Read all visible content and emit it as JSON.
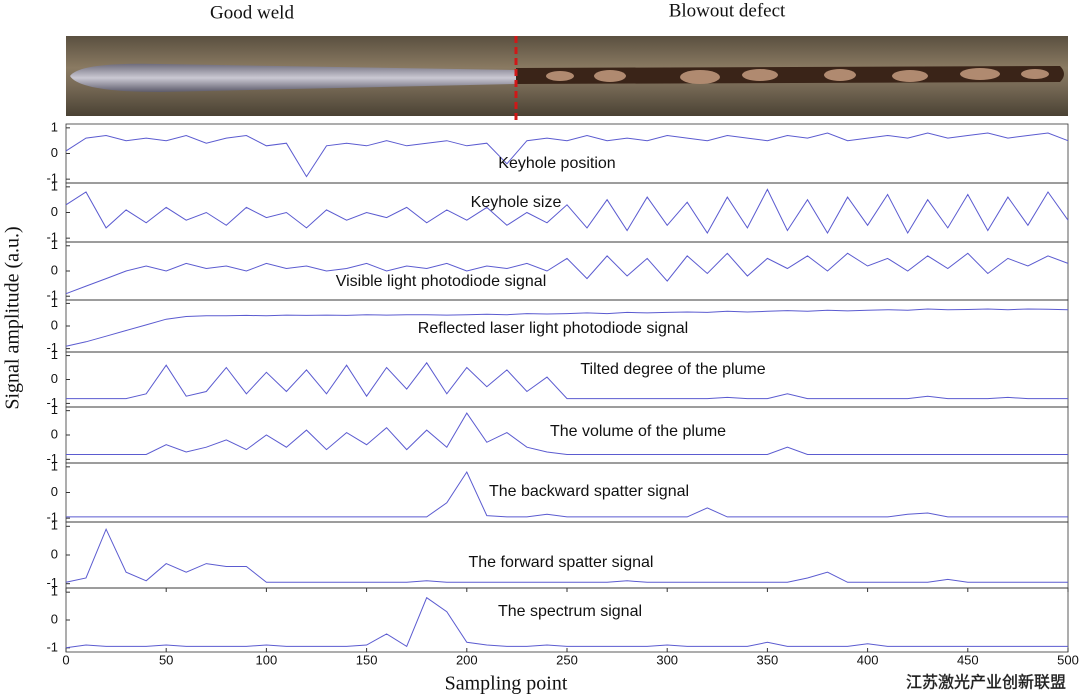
{
  "photo": {
    "left_label": "Good weld",
    "right_label": "Blowout defect"
  },
  "watermark": "江苏激光产业创新联盟",
  "chart_data": [
    {
      "type": "line",
      "annotation": "Keyhole position",
      "color": "#5b5bd0",
      "xlim": [
        0,
        500
      ],
      "ylim": [
        -1.15,
        1.15
      ],
      "yticks": [
        1,
        0,
        -1
      ],
      "x": [
        0,
        10,
        20,
        30,
        40,
        50,
        60,
        70,
        80,
        90,
        100,
        110,
        120,
        130,
        140,
        150,
        160,
        170,
        180,
        190,
        200,
        210,
        220,
        230,
        240,
        250,
        260,
        270,
        280,
        290,
        300,
        310,
        320,
        330,
        340,
        350,
        360,
        370,
        380,
        390,
        400,
        410,
        420,
        430,
        440,
        450,
        460,
        470,
        480,
        490,
        500
      ],
      "values": [
        0.1,
        0.6,
        0.7,
        0.5,
        0.6,
        0.5,
        0.7,
        0.4,
        0.6,
        0.7,
        0.3,
        0.4,
        -0.9,
        0.3,
        0.4,
        0.3,
        0.5,
        0.3,
        0.4,
        0.5,
        0.3,
        0.4,
        -0.4,
        0.5,
        0.6,
        0.5,
        0.7,
        0.5,
        0.6,
        0.5,
        0.7,
        0.6,
        0.5,
        0.7,
        0.6,
        0.5,
        0.7,
        0.6,
        0.8,
        0.5,
        0.6,
        0.7,
        0.6,
        0.8,
        0.6,
        0.7,
        0.8,
        0.6,
        0.7,
        0.8,
        0.5
      ]
    },
    {
      "type": "line",
      "annotation": "Keyhole size",
      "color": "#5b5bd0",
      "xlim": [
        0,
        500
      ],
      "ylim": [
        -1.15,
        1.15
      ],
      "yticks": [
        1,
        0,
        -1
      ],
      "x": [
        0,
        10,
        20,
        30,
        40,
        50,
        60,
        70,
        80,
        90,
        100,
        110,
        120,
        130,
        140,
        150,
        160,
        170,
        180,
        190,
        200,
        210,
        220,
        230,
        240,
        250,
        260,
        270,
        280,
        290,
        300,
        310,
        320,
        330,
        340,
        350,
        360,
        370,
        380,
        390,
        400,
        410,
        420,
        430,
        440,
        450,
        460,
        470,
        480,
        490,
        500
      ],
      "values": [
        0.3,
        0.8,
        -0.6,
        0.1,
        -0.4,
        0.2,
        -0.3,
        0.0,
        -0.5,
        0.2,
        -0.2,
        0.0,
        -0.6,
        0.1,
        -0.3,
        0.0,
        -0.2,
        0.2,
        -0.4,
        0.1,
        -0.3,
        0.2,
        -0.5,
        0.0,
        -0.4,
        0.3,
        -0.6,
        0.5,
        -0.7,
        0.6,
        -0.5,
        0.4,
        -0.8,
        0.6,
        -0.6,
        0.9,
        -0.7,
        0.5,
        -0.8,
        0.6,
        -0.5,
        0.7,
        -0.8,
        0.5,
        -0.6,
        0.7,
        -0.7,
        0.6,
        -0.5,
        0.8,
        -0.3
      ]
    },
    {
      "type": "line",
      "annotation": "Visible light photodiode signal",
      "color": "#5b5bd0",
      "xlim": [
        0,
        500
      ],
      "ylim": [
        -1.15,
        1.15
      ],
      "yticks": [
        1,
        0,
        -1
      ],
      "x": [
        0,
        10,
        20,
        30,
        40,
        50,
        60,
        70,
        80,
        90,
        100,
        110,
        120,
        130,
        140,
        150,
        160,
        170,
        180,
        190,
        200,
        210,
        220,
        230,
        240,
        250,
        260,
        270,
        280,
        290,
        300,
        310,
        320,
        330,
        340,
        350,
        360,
        370,
        380,
        390,
        400,
        410,
        420,
        430,
        440,
        450,
        460,
        470,
        480,
        490,
        500
      ],
      "values": [
        -0.9,
        -0.6,
        -0.3,
        0.0,
        0.2,
        0.0,
        0.3,
        0.1,
        0.2,
        0.0,
        0.3,
        0.1,
        0.2,
        0.0,
        0.1,
        0.3,
        0.0,
        0.2,
        0.1,
        0.3,
        0.0,
        0.2,
        0.1,
        0.3,
        0.0,
        0.5,
        -0.3,
        0.6,
        -0.2,
        0.5,
        -0.4,
        0.6,
        -0.1,
        0.7,
        -0.2,
        0.5,
        0.1,
        0.6,
        0.0,
        0.7,
        0.2,
        0.5,
        0.0,
        0.6,
        0.1,
        0.7,
        -0.1,
        0.5,
        0.2,
        0.6,
        0.3
      ]
    },
    {
      "type": "line",
      "annotation": "Reflected laser light photodiode signal",
      "color": "#5b5bd0",
      "xlim": [
        0,
        500
      ],
      "ylim": [
        -1.15,
        1.15
      ],
      "yticks": [
        1,
        0,
        -1
      ],
      "x": [
        0,
        10,
        20,
        30,
        40,
        50,
        60,
        70,
        80,
        90,
        100,
        110,
        120,
        130,
        140,
        150,
        160,
        170,
        180,
        190,
        200,
        210,
        220,
        230,
        240,
        250,
        260,
        270,
        280,
        290,
        300,
        310,
        320,
        330,
        340,
        350,
        360,
        370,
        380,
        390,
        400,
        410,
        420,
        430,
        440,
        450,
        460,
        470,
        480,
        490,
        500
      ],
      "values": [
        -0.9,
        -0.7,
        -0.45,
        -0.2,
        0.05,
        0.3,
        0.42,
        0.45,
        0.45,
        0.47,
        0.45,
        0.48,
        0.47,
        0.48,
        0.47,
        0.5,
        0.48,
        0.5,
        0.5,
        0.48,
        0.5,
        0.52,
        0.5,
        0.55,
        0.53,
        0.55,
        0.58,
        0.55,
        0.6,
        0.58,
        0.6,
        0.62,
        0.6,
        0.65,
        0.62,
        0.65,
        0.68,
        0.65,
        0.7,
        0.67,
        0.7,
        0.72,
        0.7,
        0.75,
        0.72,
        0.73,
        0.75,
        0.72,
        0.75,
        0.74,
        0.72
      ]
    },
    {
      "type": "line",
      "annotation": "Tilted degree of the plume",
      "color": "#5b5bd0",
      "xlim": [
        0,
        500
      ],
      "ylim": [
        -1.15,
        1.15
      ],
      "yticks": [
        1,
        0,
        -1
      ],
      "x": [
        0,
        10,
        20,
        30,
        40,
        50,
        60,
        70,
        80,
        90,
        100,
        110,
        120,
        130,
        140,
        150,
        160,
        170,
        180,
        190,
        200,
        210,
        220,
        230,
        240,
        250,
        260,
        270,
        280,
        290,
        300,
        310,
        320,
        330,
        340,
        350,
        360,
        370,
        380,
        390,
        400,
        410,
        420,
        430,
        440,
        450,
        460,
        470,
        480,
        490,
        500
      ],
      "values": [
        -0.8,
        -0.8,
        -0.8,
        -0.8,
        -0.6,
        0.6,
        -0.7,
        -0.5,
        0.5,
        -0.6,
        0.3,
        -0.5,
        0.4,
        -0.6,
        0.6,
        -0.7,
        0.5,
        -0.4,
        0.7,
        -0.6,
        0.5,
        -0.3,
        0.4,
        -0.5,
        0.1,
        -0.8,
        -0.8,
        -0.8,
        -0.8,
        -0.8,
        -0.8,
        -0.8,
        -0.8,
        -0.75,
        -0.8,
        -0.8,
        -0.6,
        -0.8,
        -0.8,
        -0.8,
        -0.8,
        -0.8,
        -0.8,
        -0.7,
        -0.8,
        -0.8,
        -0.8,
        -0.75,
        -0.8,
        -0.8,
        -0.8
      ]
    },
    {
      "type": "line",
      "annotation": "The volume of the plume",
      "color": "#5b5bd0",
      "xlim": [
        0,
        500
      ],
      "ylim": [
        -1.15,
        1.15
      ],
      "yticks": [
        1,
        0,
        -1
      ],
      "x": [
        0,
        10,
        20,
        30,
        40,
        50,
        60,
        70,
        80,
        90,
        100,
        110,
        120,
        130,
        140,
        150,
        160,
        170,
        180,
        190,
        200,
        210,
        220,
        230,
        240,
        250,
        260,
        270,
        280,
        290,
        300,
        310,
        320,
        330,
        340,
        350,
        360,
        370,
        380,
        390,
        400,
        410,
        420,
        430,
        440,
        450,
        460,
        470,
        480,
        490,
        500
      ],
      "values": [
        -0.8,
        -0.8,
        -0.8,
        -0.8,
        -0.8,
        -0.4,
        -0.7,
        -0.5,
        -0.2,
        -0.6,
        0.0,
        -0.5,
        0.2,
        -0.6,
        0.1,
        -0.4,
        0.3,
        -0.6,
        0.2,
        -0.5,
        0.9,
        -0.3,
        0.1,
        -0.5,
        -0.7,
        -0.8,
        -0.8,
        -0.8,
        -0.8,
        -0.8,
        -0.8,
        -0.8,
        -0.8,
        -0.8,
        -0.8,
        -0.8,
        -0.5,
        -0.8,
        -0.8,
        -0.8,
        -0.8,
        -0.8,
        -0.8,
        -0.8,
        -0.8,
        -0.8,
        -0.8,
        -0.8,
        -0.8,
        -0.8,
        -0.8
      ]
    },
    {
      "type": "line",
      "annotation": "The backward spatter signal",
      "color": "#5b5bd0",
      "xlim": [
        0,
        500
      ],
      "ylim": [
        -1.15,
        1.15
      ],
      "yticks": [
        1,
        0,
        -1
      ],
      "x": [
        0,
        10,
        20,
        30,
        40,
        50,
        60,
        70,
        80,
        90,
        100,
        110,
        120,
        130,
        140,
        150,
        160,
        170,
        180,
        190,
        200,
        210,
        220,
        230,
        240,
        250,
        260,
        270,
        280,
        290,
        300,
        310,
        320,
        330,
        340,
        350,
        360,
        370,
        380,
        390,
        400,
        410,
        420,
        430,
        440,
        450,
        460,
        470,
        480,
        490,
        500
      ],
      "values": [
        -0.95,
        -0.95,
        -0.95,
        -0.95,
        -0.95,
        -0.95,
        -0.95,
        -0.95,
        -0.95,
        -0.95,
        -0.95,
        -0.95,
        -0.95,
        -0.95,
        -0.95,
        -0.95,
        -0.95,
        -0.95,
        -0.95,
        -0.4,
        0.8,
        -0.9,
        -0.95,
        -0.95,
        -0.85,
        -0.95,
        -0.95,
        -0.95,
        -0.95,
        -0.95,
        -0.95,
        -0.95,
        -0.6,
        -0.95,
        -0.95,
        -0.95,
        -0.95,
        -0.95,
        -0.95,
        -0.95,
        -0.95,
        -0.95,
        -0.85,
        -0.8,
        -0.95,
        -0.95,
        -0.95,
        -0.95,
        -0.95,
        -0.95,
        -0.95
      ]
    },
    {
      "type": "line",
      "annotation": "The forward spatter signal",
      "color": "#5b5bd0",
      "xlim": [
        0,
        500
      ],
      "ylim": [
        -1.15,
        1.15
      ],
      "yticks": [
        1,
        0,
        -1
      ],
      "x": [
        0,
        10,
        20,
        30,
        40,
        50,
        60,
        70,
        80,
        90,
        100,
        110,
        120,
        130,
        140,
        150,
        160,
        170,
        180,
        190,
        200,
        210,
        220,
        230,
        240,
        250,
        260,
        270,
        280,
        290,
        300,
        310,
        320,
        330,
        340,
        350,
        360,
        370,
        380,
        390,
        400,
        410,
        420,
        430,
        440,
        450,
        460,
        470,
        480,
        490,
        500
      ],
      "values": [
        -0.95,
        -0.8,
        0.9,
        -0.6,
        -0.9,
        -0.3,
        -0.6,
        -0.3,
        -0.4,
        -0.4,
        -0.95,
        -0.95,
        -0.95,
        -0.95,
        -0.95,
        -0.95,
        -0.95,
        -0.95,
        -0.9,
        -0.95,
        -0.95,
        -0.95,
        -0.95,
        -0.95,
        -0.95,
        -0.95,
        -0.95,
        -0.95,
        -0.9,
        -0.95,
        -0.95,
        -0.95,
        -0.95,
        -0.95,
        -0.95,
        -0.95,
        -0.95,
        -0.8,
        -0.6,
        -0.95,
        -0.95,
        -0.95,
        -0.95,
        -0.95,
        -0.85,
        -0.95,
        -0.95,
        -0.95,
        -0.95,
        -0.95,
        -0.95
      ]
    },
    {
      "type": "line",
      "annotation": "The spectrum signal",
      "color": "#5b5bd0",
      "xlim": [
        0,
        500
      ],
      "ylim": [
        -1.15,
        1.15
      ],
      "yticks": [
        1,
        0,
        -1
      ],
      "xticks": [
        0,
        50,
        100,
        150,
        200,
        250,
        300,
        350,
        400,
        450,
        500
      ],
      "xlabel": "Sampling point",
      "ylabel": "Signal amplitude (a.u.)",
      "x": [
        0,
        10,
        20,
        30,
        40,
        50,
        60,
        70,
        80,
        90,
        100,
        110,
        120,
        130,
        140,
        150,
        160,
        170,
        180,
        190,
        200,
        210,
        220,
        230,
        240,
        250,
        260,
        270,
        280,
        290,
        300,
        310,
        320,
        330,
        340,
        350,
        360,
        370,
        380,
        390,
        400,
        410,
        420,
        430,
        440,
        450,
        460,
        470,
        480,
        490,
        500
      ],
      "values": [
        -1,
        -0.9,
        -0.95,
        -0.95,
        -0.95,
        -0.9,
        -0.95,
        -0.95,
        -0.95,
        -0.95,
        -0.9,
        -0.95,
        -0.95,
        -0.95,
        -0.95,
        -0.9,
        -0.5,
        -0.95,
        0.8,
        0.3,
        -0.8,
        -0.9,
        -0.95,
        -0.95,
        -0.9,
        -0.95,
        -0.95,
        -0.95,
        -0.95,
        -0.95,
        -0.9,
        -0.95,
        -0.95,
        -0.95,
        -0.95,
        -0.8,
        -0.95,
        -0.95,
        -0.95,
        -0.95,
        -0.85,
        -0.95,
        -0.95,
        -0.95,
        -0.95,
        -0.95,
        -0.95,
        -0.95,
        -0.95,
        -0.95,
        -0.95
      ]
    }
  ]
}
